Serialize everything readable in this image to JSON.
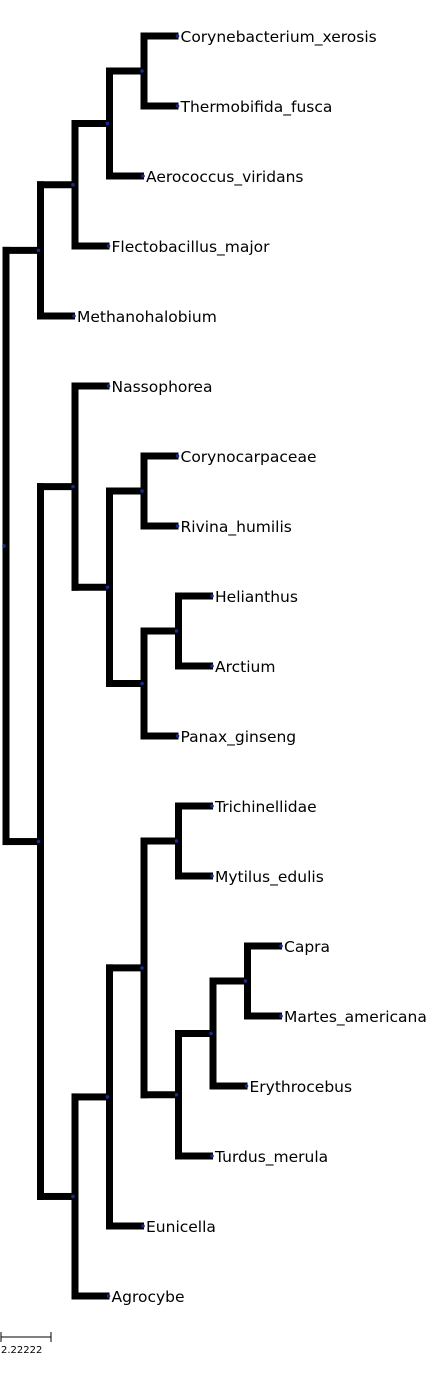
{
  "tree": {
    "root": {
      "children": [
        {
          "children": [
            {
              "children": [
                {
                  "children": [
                    {
                      "children": [
                        {
                          "label": "Corynebacterium_xerosis"
                        },
                        {
                          "label": "Thermobifida_fusca"
                        }
                      ]
                    },
                    {
                      "label": "Aerococcus_viridans"
                    }
                  ]
                },
                {
                  "label": "Flectobacillus_major"
                }
              ]
            },
            {
              "label": "Methanohalobium"
            }
          ]
        },
        {
          "children": [
            {
              "children": [
                {
                  "label": "Nassophorea"
                },
                {
                  "children": [
                    {
                      "children": [
                        {
                          "label": "Corynocarpaceae"
                        },
                        {
                          "label": "Rivina_humilis"
                        }
                      ]
                    },
                    {
                      "children": [
                        {
                          "children": [
                            {
                              "label": "Helianthus"
                            },
                            {
                              "label": "Arctium"
                            }
                          ]
                        },
                        {
                          "label": "Panax_ginseng"
                        }
                      ]
                    }
                  ]
                }
              ]
            },
            {
              "children": [
                {
                  "children": [
                    {
                      "children": [
                        {
                          "children": [
                            {
                              "label": "Trichinellidae"
                            },
                            {
                              "label": "Mytilus_edulis"
                            }
                          ]
                        },
                        {
                          "children": [
                            {
                              "children": [
                                {
                                  "children": [
                                    {
                                      "label": "Capra"
                                    },
                                    {
                                      "label": "Martes_americana"
                                    }
                                  ]
                                },
                                {
                                  "label": "Erythrocebus"
                                }
                              ]
                            },
                            {
                              "label": "Turdus_merula"
                            }
                          ]
                        }
                      ]
                    },
                    {
                      "label": "Eunicella"
                    }
                  ]
                },
                {
                  "label": "Agrocybe"
                }
              ]
            }
          ]
        }
      ]
    },
    "colors": {
      "branch": "#000000",
      "node": "#1a2b8c"
    }
  },
  "scale_bar": {
    "label": "2.22222"
  }
}
